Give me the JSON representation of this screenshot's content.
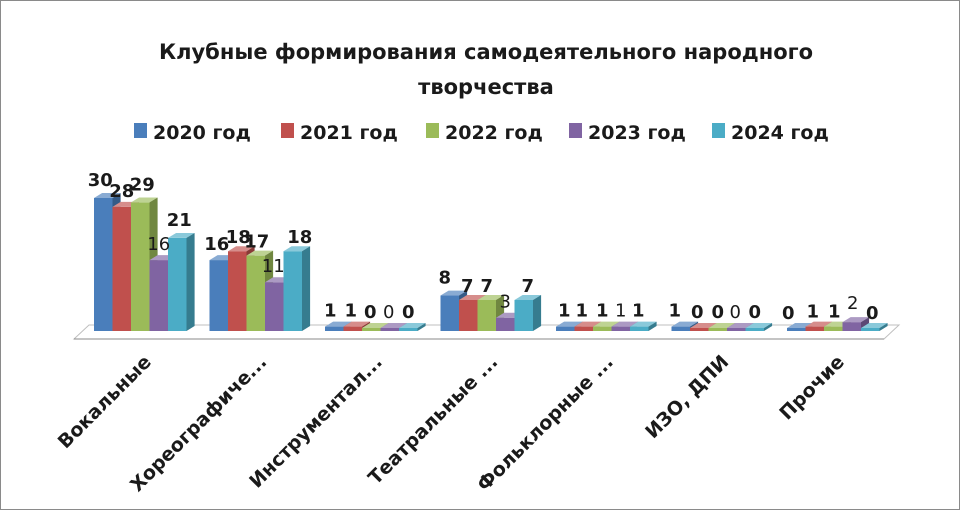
{
  "chart_data": {
    "type": "bar",
    "title_line1": "Клубные формирования самодеятельного народного",
    "title_line2": "творчества",
    "categories": [
      "Вокальные",
      "Хореографиче...",
      "Инструментал...",
      "Театральные ...",
      "Фольклорные ...",
      "ИЗО, ДПИ",
      "Прочие"
    ],
    "series": [
      {
        "name": "2020 год",
        "color": "#4a7ebb",
        "values": [
          30,
          16,
          1,
          8,
          1,
          1,
          0
        ]
      },
      {
        "name": "2021 год",
        "color": "#c0504d",
        "values": [
          28,
          18,
          1,
          7,
          1,
          0,
          1
        ]
      },
      {
        "name": "2022 год",
        "color": "#9bbb59",
        "values": [
          29,
          17,
          0,
          7,
          1,
          0,
          1
        ]
      },
      {
        "name": "2023 год",
        "color": "#8064a2",
        "values": [
          16,
          11,
          0,
          3,
          1,
          0,
          2
        ]
      },
      {
        "name": "2024 год",
        "color": "#4bacc6",
        "values": [
          21,
          18,
          0,
          7,
          1,
          0,
          0
        ]
      }
    ],
    "ylim": [
      0,
      30
    ],
    "grid": false,
    "legend_position": "top",
    "bar_style": "3d"
  }
}
